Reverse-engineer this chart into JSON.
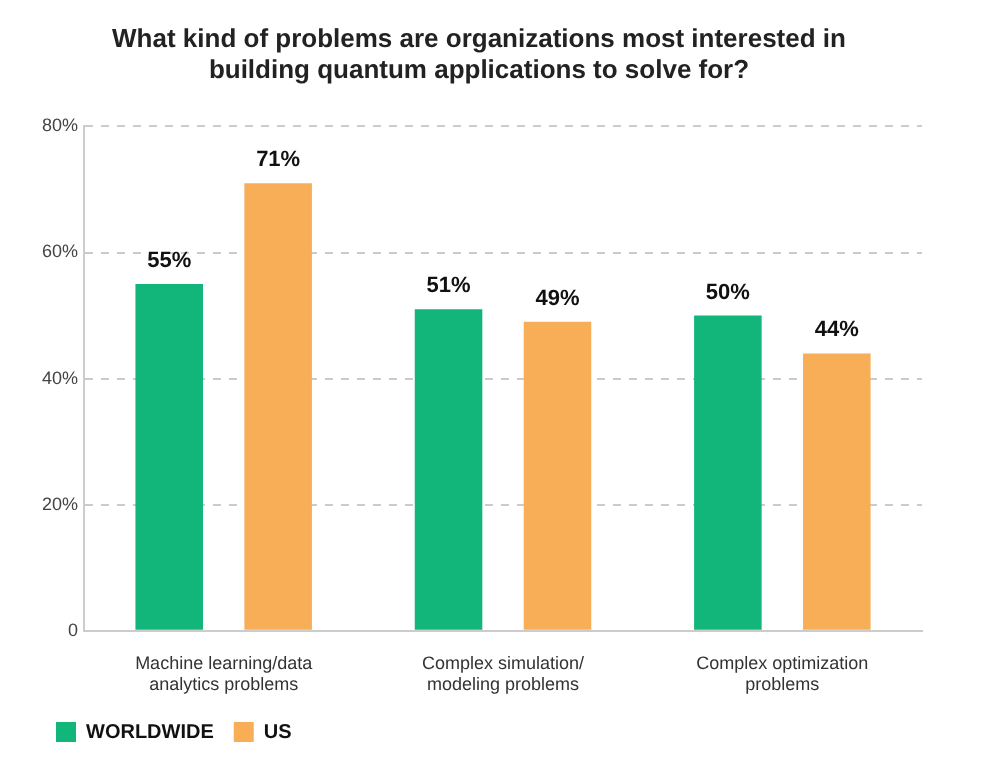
{
  "chart_data": {
    "type": "bar",
    "title": "What kind of problems are organizations most interested in building quantum applications to solve for?",
    "categories": [
      "Machine learning/data analytics problems",
      "Complex simulation/ modeling problems",
      "Complex optimization problems"
    ],
    "series": [
      {
        "name": "WORLDWIDE",
        "color": "#12b57a",
        "values": [
          55,
          51,
          50
        ],
        "value_labels": [
          "55%",
          "51%",
          "50%"
        ]
      },
      {
        "name": "US",
        "color": "#f7ae57",
        "values": [
          71,
          49,
          44
        ],
        "value_labels": [
          "71%",
          "49%",
          "44%"
        ]
      }
    ],
    "ylim": [
      0,
      80
    ],
    "yticks": [
      0,
      {
        "value": 20,
        "label": "20%"
      },
      {
        "value": 40,
        "label": "40%"
      },
      {
        "value": 60,
        "label": "60%"
      },
      {
        "value": 80,
        "label": "80%"
      }
    ],
    "grid": "y",
    "legend": "bottom left"
  }
}
